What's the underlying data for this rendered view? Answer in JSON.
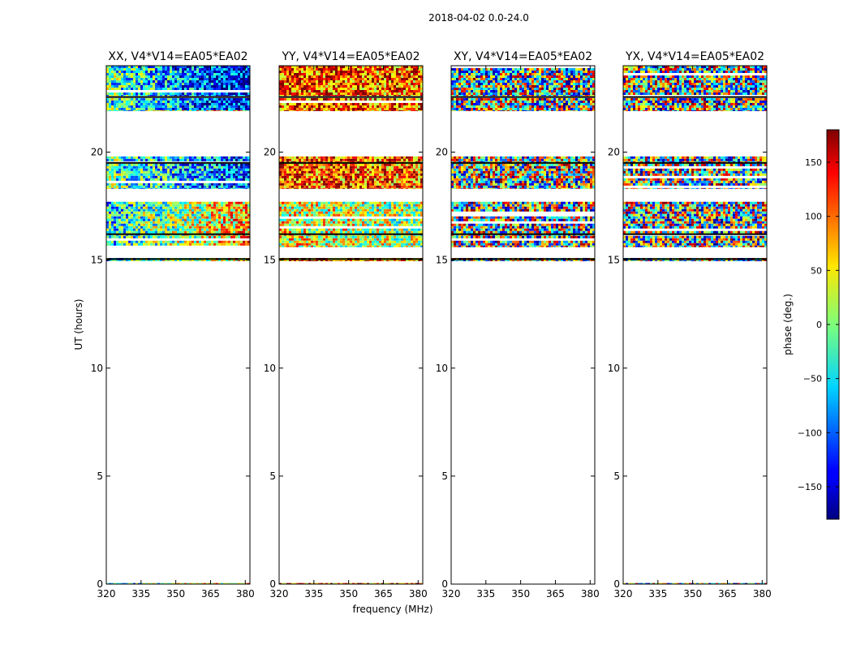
{
  "figure": {
    "suptitle": "2018-04-02 0.0-24.0",
    "xlabel": "frequency (MHz)",
    "ylabel": "UT (hours)"
  },
  "chart_data": {
    "type": "heatmap",
    "xlim": [
      320,
      382
    ],
    "ylim": [
      0,
      24
    ],
    "x_ticks": [
      320,
      335,
      350,
      365,
      380
    ],
    "y_ticks": [
      0,
      5,
      10,
      15,
      20
    ],
    "panels": [
      {
        "title": "XX, V4*V14=EA05*EA02",
        "polarization": "XX",
        "show_ylabel": true,
        "show_xlabel": false
      },
      {
        "title": "YY, V4*V14=EA05*EA02",
        "polarization": "YY",
        "show_ylabel": false,
        "show_xlabel": true
      },
      {
        "title": "XY, V4*V14=EA05*EA02",
        "polarization": "XY",
        "show_ylabel": false,
        "show_xlabel": false
      },
      {
        "title": "YX, V4*V14=EA05*EA02",
        "polarization": "YX",
        "show_ylabel": false,
        "show_xlabel": false
      }
    ],
    "data_blocks_ut_hours": [
      {
        "start": 21.9,
        "end": 22.5
      },
      {
        "start": 22.6,
        "end": 24.0
      },
      {
        "start": 18.3,
        "end": 19.8
      },
      {
        "start": 15.6,
        "end": 17.7
      },
      {
        "start": 14.95,
        "end": 15.1
      },
      {
        "start": 0.0,
        "end": 0.05
      }
    ],
    "colorbar": {
      "label": "phase (deg.)",
      "range": [
        -180,
        180
      ],
      "ticks": [
        -150,
        -100,
        -50,
        0,
        50,
        100,
        150
      ],
      "colormap": "jet"
    }
  }
}
